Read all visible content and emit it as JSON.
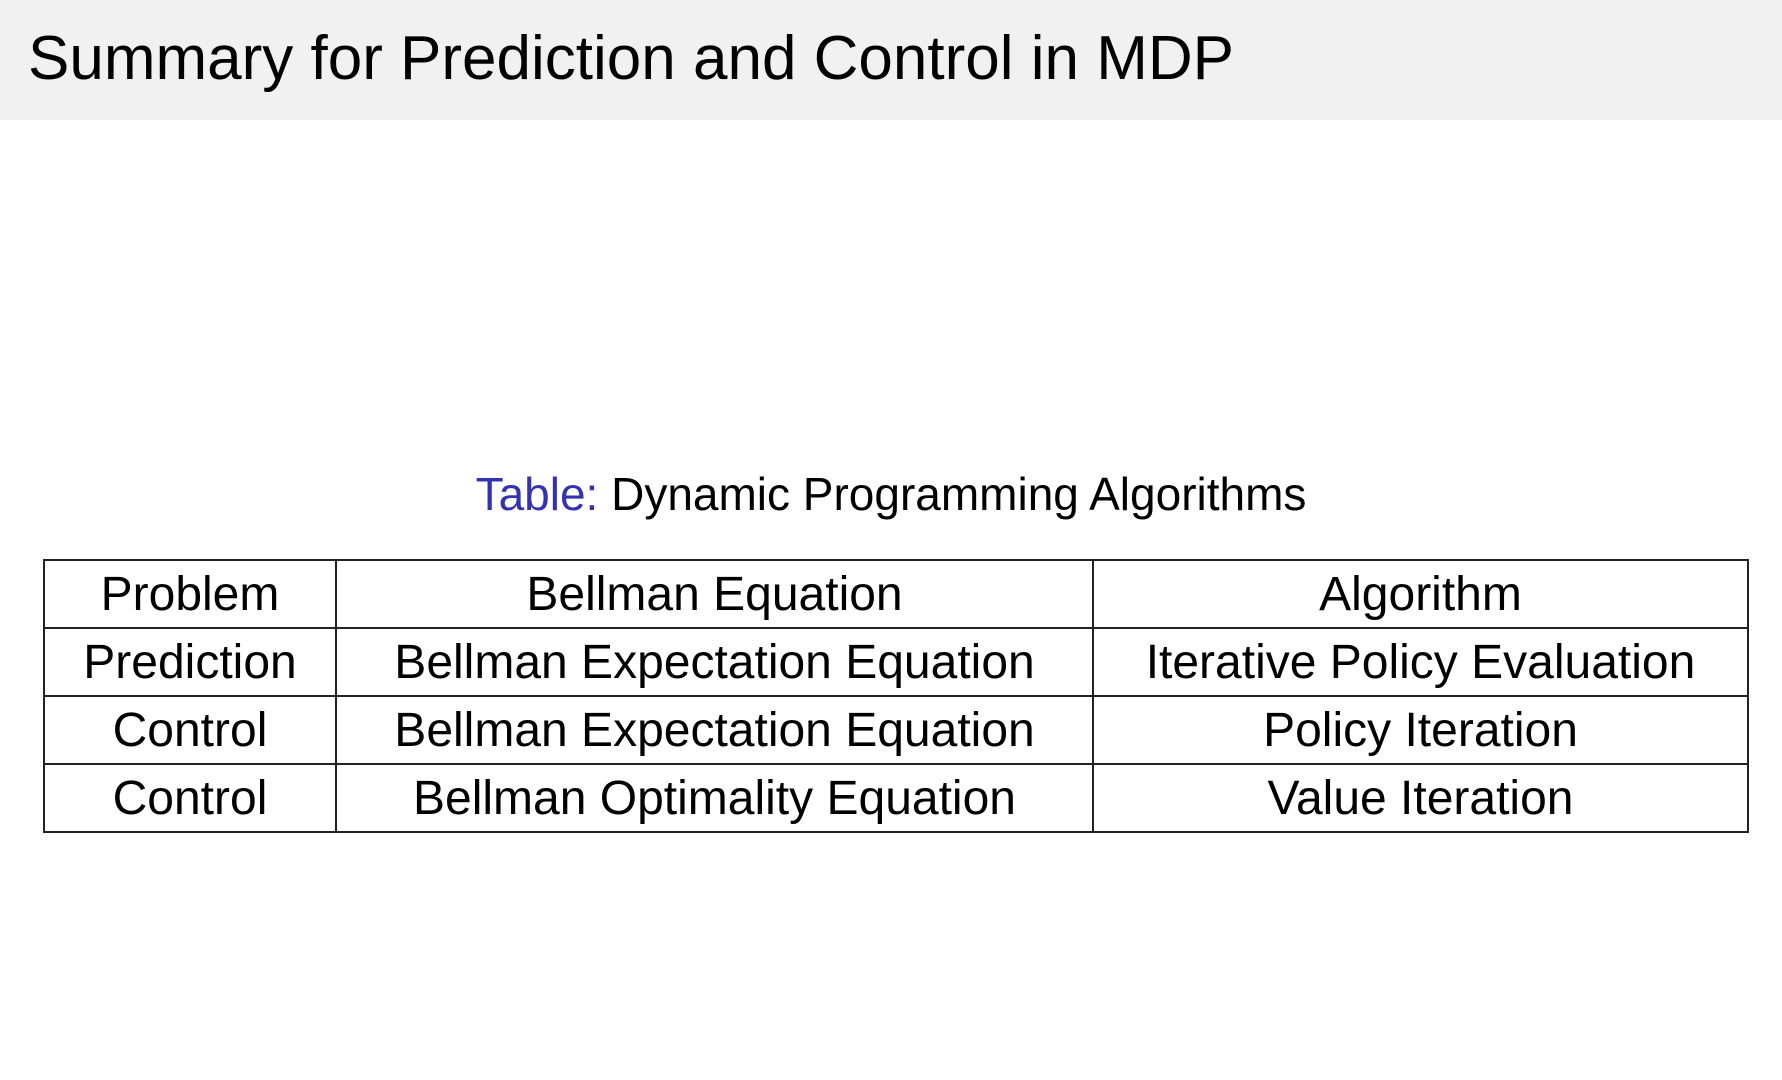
{
  "slide": {
    "title": "Summary for Prediction and Control in MDP",
    "caption_label": "Table:",
    "caption_text": "Dynamic Programming Algorithms",
    "table": {
      "headers": [
        "Problem",
        "Bellman Equation",
        "Algorithm"
      ],
      "rows": [
        [
          "Prediction",
          "Bellman Expectation Equation",
          "Iterative Policy Evaluation"
        ],
        [
          "Control",
          "Bellman Expectation Equation",
          "Policy Iteration"
        ],
        [
          "Control",
          "Bellman Optimality Equation",
          "Value Iteration"
        ]
      ]
    },
    "colors": {
      "header_bg": "#f1f1f1",
      "caption_label": "#3333b2"
    }
  }
}
